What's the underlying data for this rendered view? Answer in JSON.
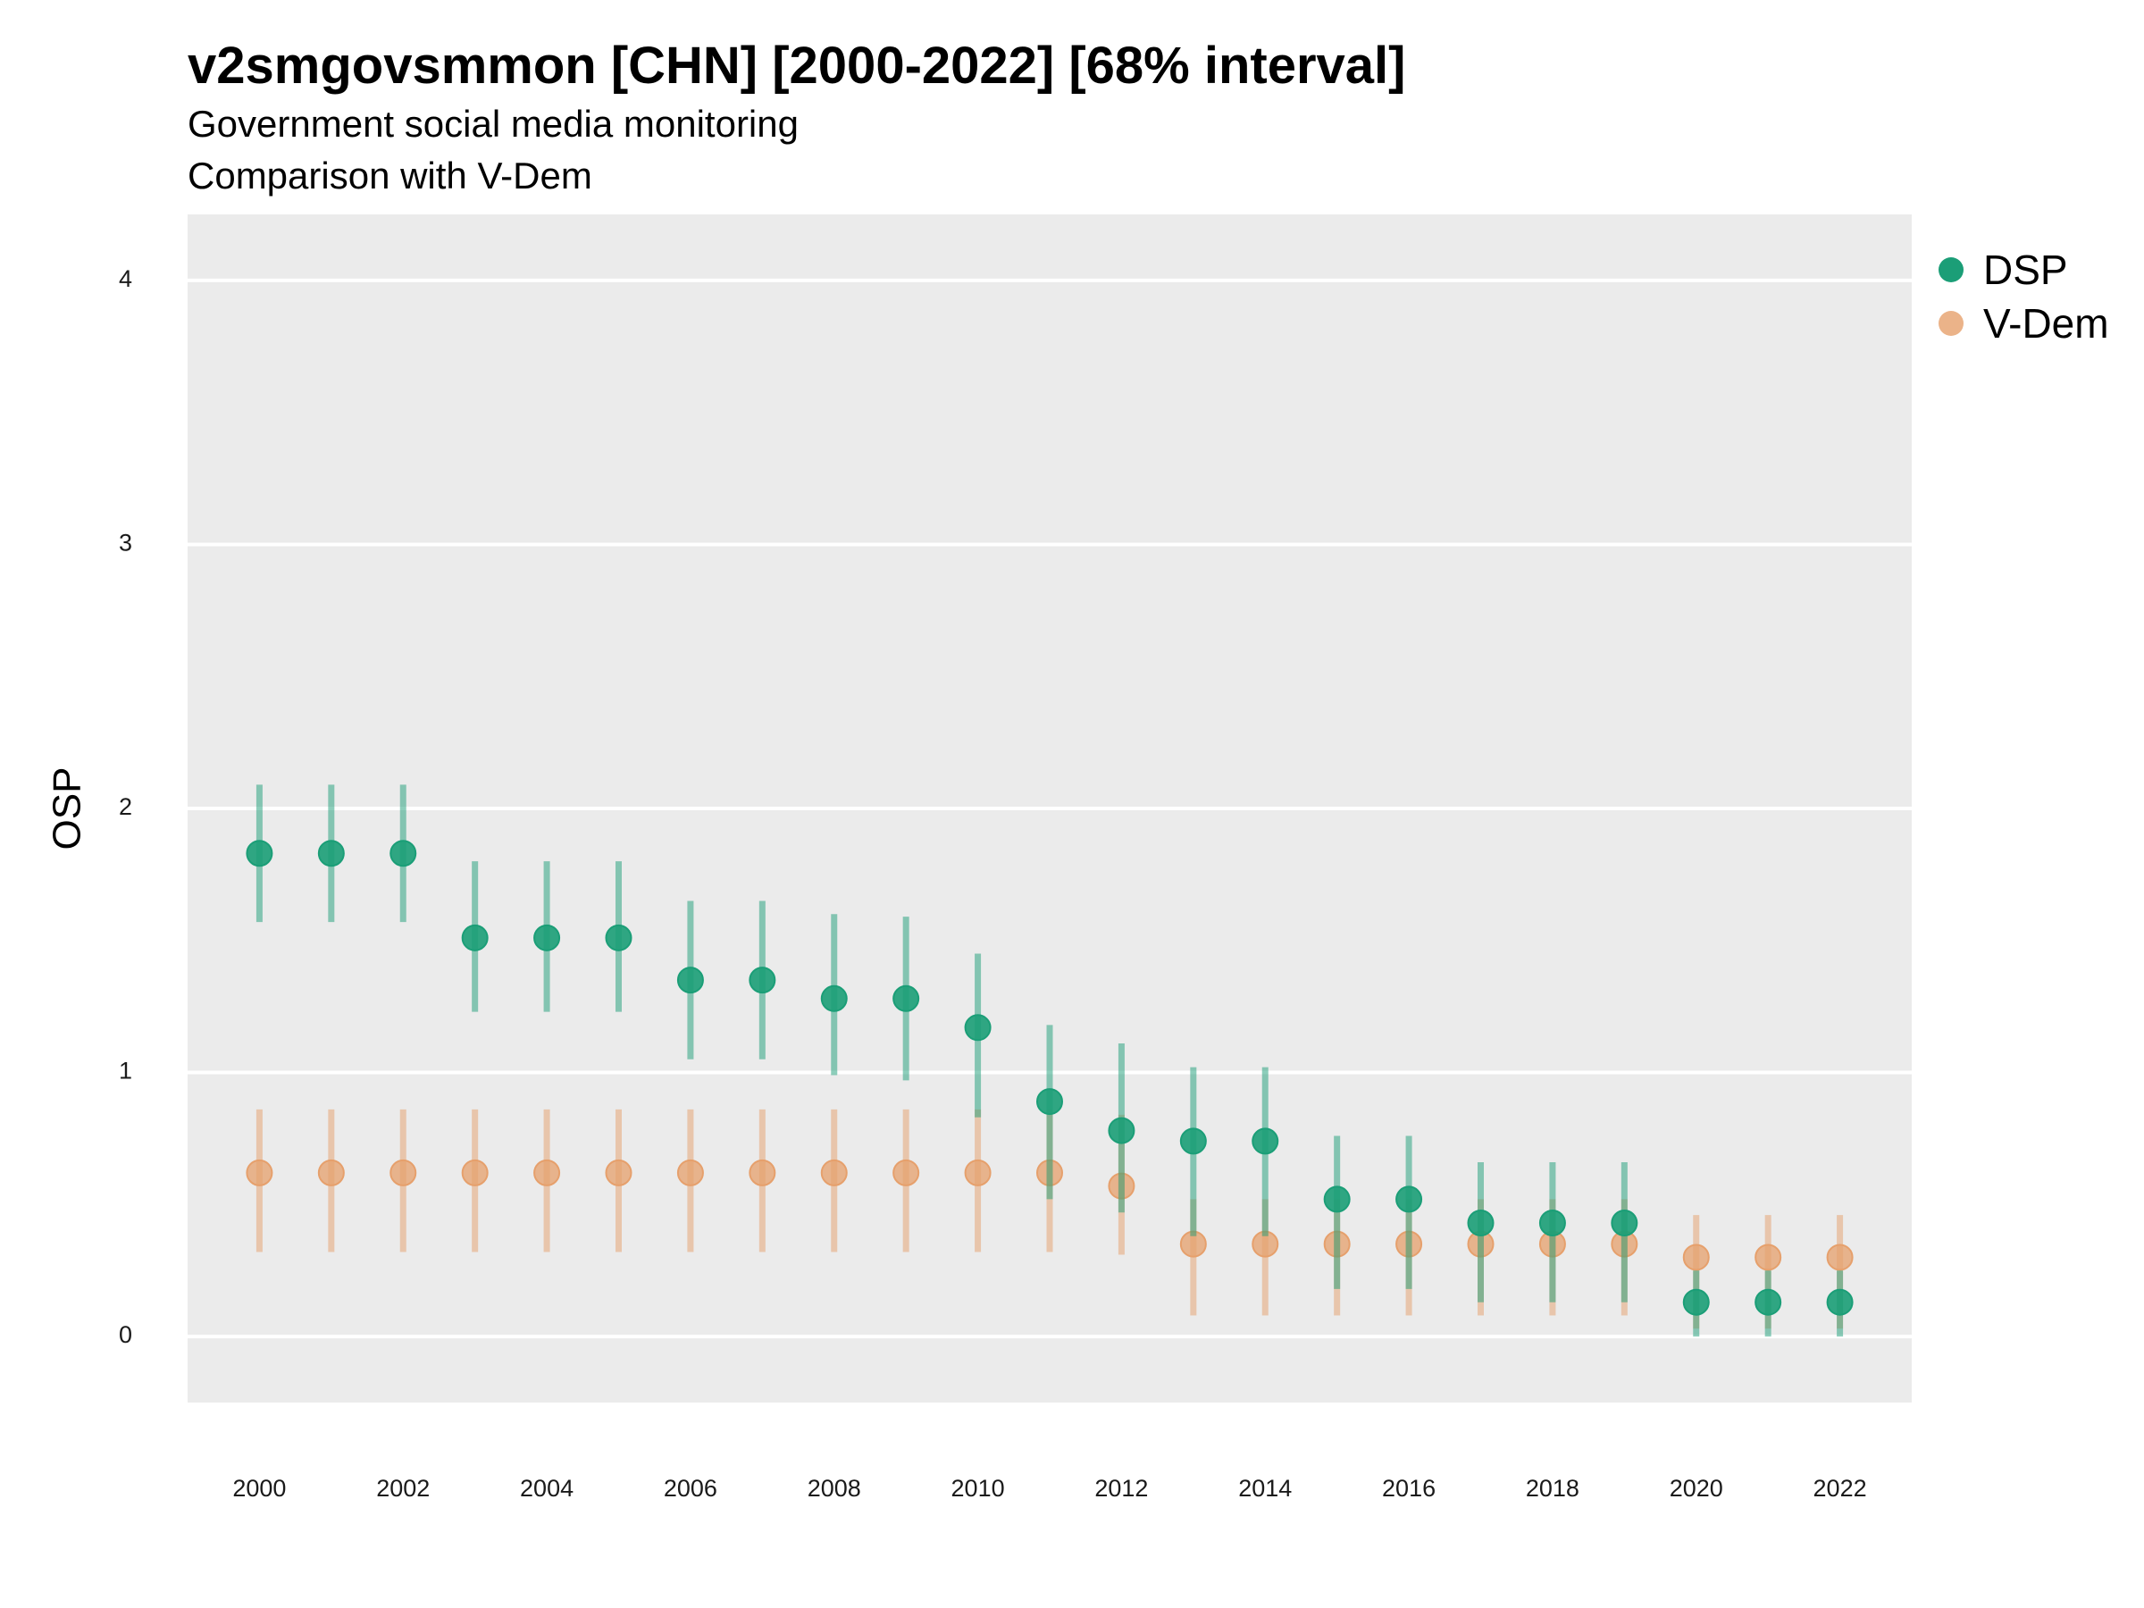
{
  "title": "v2smgovsmmon [CHN] [2000-2022] [68% interval]",
  "subtitle_line1": "Government social media monitoring",
  "subtitle_line2": "Comparison with V-Dem",
  "colors": {
    "DSP": "#1b9e77",
    "V-Dem": "#e6a06c",
    "panel": "#ebebeb",
    "grid": "#ffffff"
  },
  "chart_data": {
    "type": "scatter",
    "ylabel": "OSP",
    "xlabel": "",
    "ylim": [
      -0.25,
      4.25
    ],
    "xlim": [
      1999.0,
      2023.0
    ],
    "yticks": [
      0,
      1,
      2,
      3,
      4
    ],
    "xticks": [
      2000,
      2002,
      2004,
      2006,
      2008,
      2010,
      2012,
      2014,
      2016,
      2018,
      2020,
      2022
    ],
    "grid": true,
    "legend_position": "right",
    "x": [
      2000,
      2001,
      2002,
      2003,
      2004,
      2005,
      2006,
      2007,
      2008,
      2009,
      2010,
      2011,
      2012,
      2013,
      2014,
      2015,
      2016,
      2017,
      2018,
      2019,
      2020,
      2021,
      2022
    ],
    "series": [
      {
        "name": "DSP",
        "values": [
          1.83,
          1.83,
          1.83,
          1.51,
          1.51,
          1.51,
          1.35,
          1.35,
          1.28,
          1.28,
          1.17,
          0.89,
          0.78,
          0.74,
          0.74,
          0.52,
          0.52,
          0.43,
          0.43,
          0.43,
          0.13,
          0.13,
          0.13
        ],
        "lower": [
          1.57,
          1.57,
          1.57,
          1.23,
          1.23,
          1.23,
          1.05,
          1.05,
          0.99,
          0.97,
          0.83,
          0.52,
          0.47,
          0.38,
          0.38,
          0.18,
          0.18,
          0.13,
          0.13,
          0.13,
          0.0,
          0.0,
          0.0
        ],
        "upper": [
          2.09,
          2.09,
          2.09,
          1.8,
          1.8,
          1.8,
          1.65,
          1.65,
          1.6,
          1.59,
          1.45,
          1.18,
          1.11,
          1.02,
          1.02,
          0.76,
          0.76,
          0.66,
          0.66,
          0.66,
          0.25,
          0.25,
          0.25
        ]
      },
      {
        "name": "V-Dem",
        "values": [
          0.62,
          0.62,
          0.62,
          0.62,
          0.62,
          0.62,
          0.62,
          0.62,
          0.62,
          0.62,
          0.62,
          0.62,
          0.57,
          0.35,
          0.35,
          0.35,
          0.35,
          0.35,
          0.35,
          0.35,
          0.3,
          0.3,
          0.3
        ],
        "lower": [
          0.32,
          0.32,
          0.32,
          0.32,
          0.32,
          0.32,
          0.32,
          0.32,
          0.32,
          0.32,
          0.32,
          0.32,
          0.31,
          0.08,
          0.08,
          0.08,
          0.08,
          0.08,
          0.08,
          0.08,
          0.03,
          0.03,
          0.03
        ],
        "upper": [
          0.86,
          0.86,
          0.86,
          0.86,
          0.86,
          0.86,
          0.86,
          0.86,
          0.86,
          0.86,
          0.86,
          0.86,
          0.84,
          0.52,
          0.52,
          0.52,
          0.52,
          0.52,
          0.52,
          0.52,
          0.46,
          0.46,
          0.46
        ]
      }
    ]
  }
}
